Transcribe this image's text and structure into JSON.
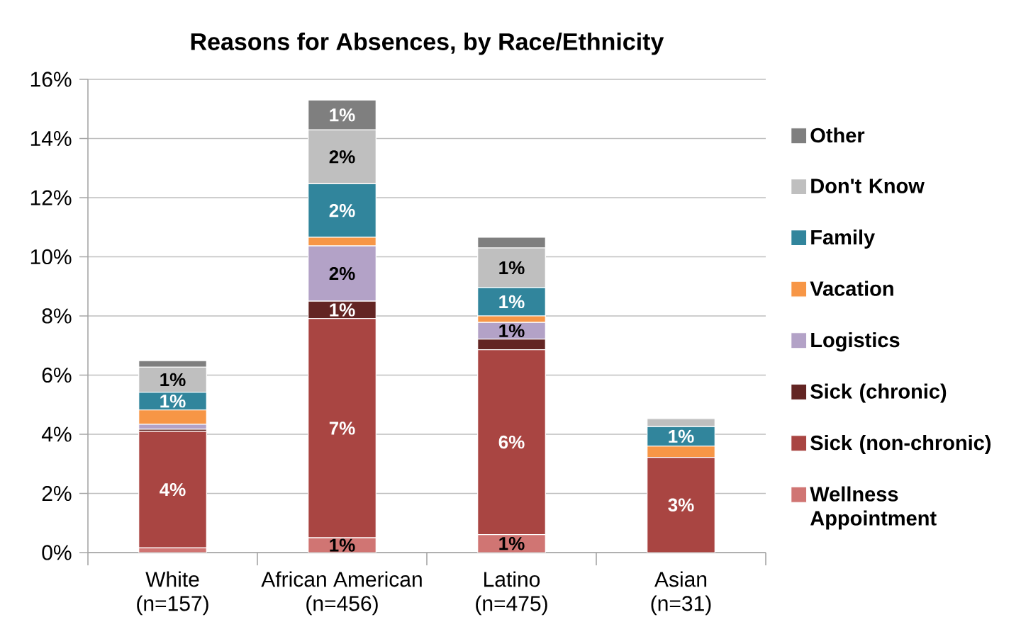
{
  "chart_data": {
    "type": "bar",
    "stacked": true,
    "title": "Reasons for Absences, by Race/Ethnicity",
    "categories": [
      "White (n=157)",
      "African American (n=456)",
      "Latino (n=475)",
      "Asian (n=31)"
    ],
    "series": [
      {
        "name": "Wellness Appointment",
        "color": "#d07573",
        "values": [
          0.16,
          0.5,
          0.61,
          0
        ],
        "value_labels": [
          null,
          "1%",
          "1%",
          null
        ]
      },
      {
        "name": "Sick (non-chronic)",
        "color": "#a94542",
        "values": [
          3.94,
          7.41,
          6.25,
          3.22
        ],
        "value_labels": [
          "4%",
          "7%",
          "6%",
          "3%"
        ]
      },
      {
        "name": "Sick (chronic)",
        "color": "#632523",
        "values": [
          0.07,
          0.59,
          0.36,
          0
        ],
        "value_labels": [
          null,
          "1%",
          null,
          null
        ]
      },
      {
        "name": "Logistics",
        "color": "#b3a2c7",
        "values": [
          0.17,
          1.87,
          0.56,
          0
        ],
        "value_labels": [
          null,
          "2%",
          "1%",
          null
        ]
      },
      {
        "name": "Vacation",
        "color": "#f79646",
        "values": [
          0.48,
          0.29,
          0.22,
          0.38
        ],
        "value_labels": [
          null,
          null,
          null,
          null
        ]
      },
      {
        "name": "Family",
        "color": "#31859c",
        "values": [
          0.6,
          1.81,
          0.96,
          0.66
        ],
        "value_labels": [
          "1%",
          "2%",
          "1%",
          "1%"
        ]
      },
      {
        "name": "Don't Know",
        "color": "#bfbfbf",
        "values": [
          0.85,
          1.82,
          1.34,
          0.27
        ],
        "value_labels": [
          "1%",
          "2%",
          "1%",
          null
        ]
      },
      {
        "name": "Other",
        "color": "#7f7f7f",
        "values": [
          0.22,
          1.01,
          0.36,
          0
        ],
        "value_labels": [
          null,
          "1%",
          null,
          null
        ]
      }
    ],
    "ylim": [
      0,
      16
    ],
    "yticks": [
      {
        "value": 0,
        "label": "0%"
      },
      {
        "value": 2,
        "label": "2%"
      },
      {
        "value": 4,
        "label": "4%"
      },
      {
        "value": 6,
        "label": "6%"
      },
      {
        "value": 8,
        "label": "8%"
      },
      {
        "value": 10,
        "label": "10%"
      },
      {
        "value": 12,
        "label": "12%"
      },
      {
        "value": 14,
        "label": "14%"
      },
      {
        "value": 16,
        "label": "16%"
      }
    ],
    "grid": "y",
    "legend": "right"
  }
}
